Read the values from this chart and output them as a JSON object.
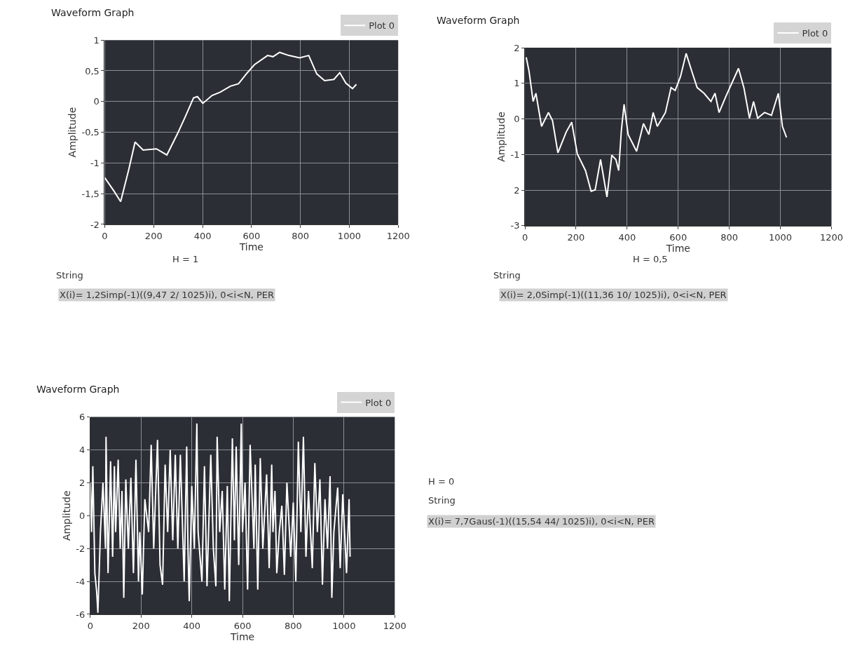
{
  "chart_data": [
    {
      "type": "line",
      "title": "Waveform Graph",
      "xlabel": "Time",
      "ylabel": "Amplitude",
      "legend": "top right",
      "grid": true,
      "xlim": [
        0,
        1200
      ],
      "xticks": [
        0,
        200,
        400,
        600,
        800,
        1000,
        1200
      ],
      "ylim": [
        -2,
        1
      ],
      "yticks": [
        {
          "value": -2,
          "label": "-2"
        },
        {
          "value": -1.5,
          "label": "-1,5"
        },
        {
          "value": -1,
          "label": "-1"
        },
        {
          "value": -0.5,
          "label": "-0,5"
        },
        {
          "value": 0,
          "label": "0"
        },
        {
          "value": 0.5,
          "label": "0,5"
        },
        {
          "value": 1,
          "label": "1"
        }
      ],
      "x": [
        0,
        38,
        65,
        98,
        124,
        157,
        211,
        254,
        298,
        330,
        363,
        379,
        401,
        439,
        471,
        514,
        547,
        579,
        612,
        666,
        688,
        715,
        753,
        797,
        834,
        867,
        899,
        937,
        961,
        986,
        1013,
        1029
      ],
      "series": [
        {
          "name": "Plot 0",
          "color": "#ffffff",
          "values": [
            -1.24,
            -1.46,
            -1.63,
            -1.11,
            -0.66,
            -0.79,
            -0.77,
            -0.87,
            -0.52,
            -0.24,
            0.06,
            0.08,
            -0.03,
            0.1,
            0.15,
            0.25,
            0.29,
            0.45,
            0.6,
            0.75,
            0.73,
            0.8,
            0.75,
            0.71,
            0.75,
            0.45,
            0.34,
            0.36,
            0.47,
            0.3,
            0.21,
            0.28
          ]
        }
      ],
      "annotations": [
        "H = 1",
        "String",
        "X(i)= 1,2Simp(-1)((9,47 2/ 1025)i), 0<i<N, PER"
      ]
    },
    {
      "type": "line",
      "title": "Waveform Graph",
      "xlabel": "Time",
      "ylabel": "Amplitude",
      "legend": "top right",
      "grid": true,
      "xlim": [
        0,
        1200
      ],
      "xticks": [
        0,
        200,
        400,
        600,
        800,
        1000,
        1200
      ],
      "ylim": [
        -3,
        2
      ],
      "yticks": [
        {
          "value": -3,
          "label": "-3"
        },
        {
          "value": -2,
          "label": "2"
        },
        {
          "value": -1,
          "label": "-1"
        },
        {
          "value": 0,
          "label": "0"
        },
        {
          "value": 1,
          "label": "1"
        },
        {
          "value": 2,
          "label": "2"
        }
      ],
      "x": [
        5,
        16,
        32,
        43,
        65,
        92,
        108,
        129,
        162,
        183,
        205,
        237,
        259,
        275,
        296,
        321,
        340,
        356,
        367,
        377,
        388,
        404,
        437,
        464,
        485,
        502,
        518,
        550,
        572,
        588,
        609,
        631,
        653,
        674,
        701,
        728,
        744,
        760,
        787,
        836,
        857,
        879,
        895,
        911,
        938,
        965,
        992,
        1008,
        1024
      ],
      "series": [
        {
          "name": "Plot 0",
          "color": "#ffffff",
          "values": [
            1.73,
            1.34,
            0.49,
            0.72,
            -0.21,
            0.18,
            -0.05,
            -0.95,
            -0.36,
            -0.09,
            -0.98,
            -1.45,
            -2.03,
            -1.99,
            -1.14,
            -2.19,
            -1.02,
            -1.14,
            -1.45,
            -0.36,
            0.41,
            -0.44,
            -0.91,
            -0.13,
            -0.44,
            0.18,
            -0.21,
            0.18,
            0.88,
            0.8,
            1.19,
            1.84,
            1.34,
            0.88,
            0.72,
            0.49,
            0.72,
            0.18,
            0.64,
            1.42,
            0.88,
            0.02,
            0.49,
            0.02,
            0.18,
            0.1,
            0.72,
            -0.21,
            -0.52
          ]
        }
      ],
      "annotations": [
        "H = 0,5",
        "String",
        "X(i)= 2,0Simp(-1)((11,36 10/ 1025)i), 0<i<N, PER"
      ]
    },
    {
      "type": "line",
      "title": "Waveform Graph",
      "xlabel": "Time",
      "ylabel": "Amplitude",
      "legend": "top right",
      "grid": true,
      "xlim": [
        0,
        1200
      ],
      "xticks": [
        0,
        200,
        400,
        600,
        800,
        1000,
        1200
      ],
      "ylim": [
        -6,
        6
      ],
      "yticks": [
        -6,
        -4,
        -2,
        0,
        2,
        4,
        6
      ],
      "x": [
        0,
        5,
        10,
        18,
        25,
        30,
        40,
        50,
        60,
        62,
        70,
        80,
        88,
        95,
        100,
        110,
        118,
        125,
        132,
        140,
        150,
        160,
        170,
        180,
        190,
        195,
        205,
        215,
        230,
        240,
        250,
        265,
        275,
        285,
        295,
        305,
        315,
        325,
        335,
        345,
        355,
        370,
        380,
        385,
        390,
        400,
        410,
        420,
        425,
        440,
        450,
        460,
        475,
        485,
        495,
        500,
        510,
        520,
        530,
        540,
        548,
        560,
        568,
        575,
        585,
        595,
        600,
        610,
        620,
        630,
        645,
        650,
        660,
        670,
        680,
        695,
        705,
        715,
        720,
        728,
        735,
        745,
        755,
        765,
        775,
        790,
        800,
        810,
        820,
        830,
        840,
        850,
        860,
        875,
        885,
        895,
        905,
        915,
        925,
        935,
        945,
        952,
        960,
        975,
        985,
        995,
        1010,
        1020,
        1024
      ],
      "series": [
        {
          "name": "Plot 0",
          "color": "#ffffff",
          "values": [
            2.0,
            -1,
            3.0,
            -3.5,
            -4.6,
            -5.9,
            -1,
            2.0,
            -2,
            4.8,
            -3.5,
            3.3,
            -2.5,
            3.0,
            -1,
            3.4,
            -2,
            1.5,
            -5.0,
            2.2,
            -2,
            2.3,
            -3.5,
            3.4,
            -4,
            -1,
            -4.8,
            1.0,
            -1,
            4.3,
            -2,
            4.6,
            -3,
            -4.2,
            3.1,
            -1,
            4.0,
            -1.5,
            3.7,
            -2,
            3.7,
            -4.0,
            4.2,
            -2,
            -5.2,
            1.8,
            -2,
            5.6,
            -1,
            -4.0,
            3.0,
            -4.3,
            3.7,
            -2,
            -4.3,
            4.8,
            -1,
            1.5,
            -4.5,
            1.8,
            -5.2,
            4.7,
            -1.5,
            4.2,
            -3,
            5.6,
            -1,
            2.0,
            -4.5,
            4.3,
            -2,
            3.1,
            -4.5,
            3.5,
            -2,
            2.5,
            -3.2,
            3.1,
            -1,
            1.5,
            -3.5,
            -1,
            0.6,
            -3.6,
            2.0,
            -2.5,
            0.8,
            -4,
            4.5,
            -1,
            4.8,
            -2.5,
            1.5,
            -3.2,
            3.2,
            -1,
            2.2,
            -4.2,
            1.0,
            -2,
            2.4,
            -5.0,
            -1,
            1.7,
            -3.2,
            1.3,
            -3.5,
            1.0,
            -2.5
          ]
        }
      ],
      "annotations": [
        "H = 0",
        "String",
        "X(i)= 7,7Gaus(-1)((15,54 44/ 1025)i), 0<i<N, PER"
      ]
    }
  ]
}
